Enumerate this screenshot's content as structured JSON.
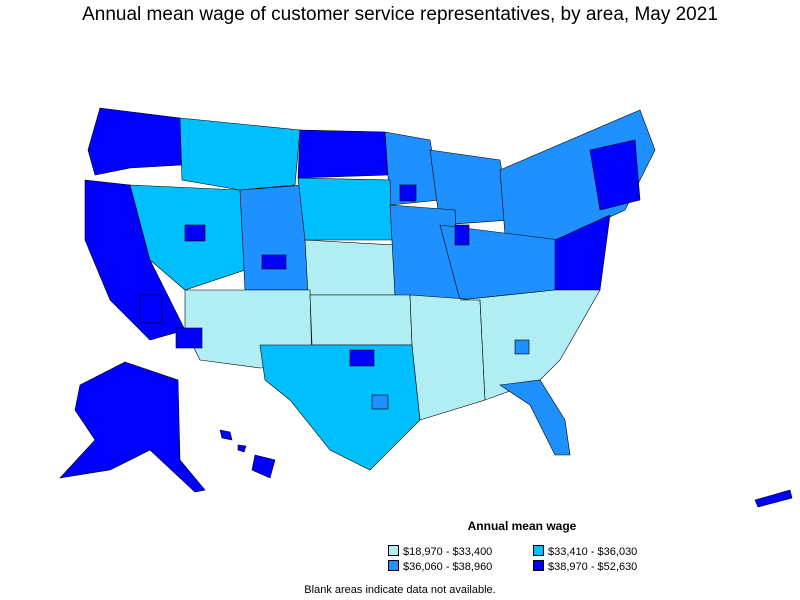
{
  "title": "Annual mean wage of customer service representatives, by area, May 2021",
  "legend": {
    "title": "Annual mean wage",
    "items": [
      {
        "label": "$18,970 - $33,400",
        "color": "#b0eef4"
      },
      {
        "label": "$33,410 - $36,030",
        "color": "#00bfff"
      },
      {
        "label": "$36,060 - $38,960",
        "color": "#1e90ff"
      },
      {
        "label": "$38,970 - $52,630",
        "color": "#0000ff"
      }
    ]
  },
  "footnote": "Blank areas indicate data not available.",
  "colors": {
    "border": "#000000",
    "background": "#ffffff"
  }
}
